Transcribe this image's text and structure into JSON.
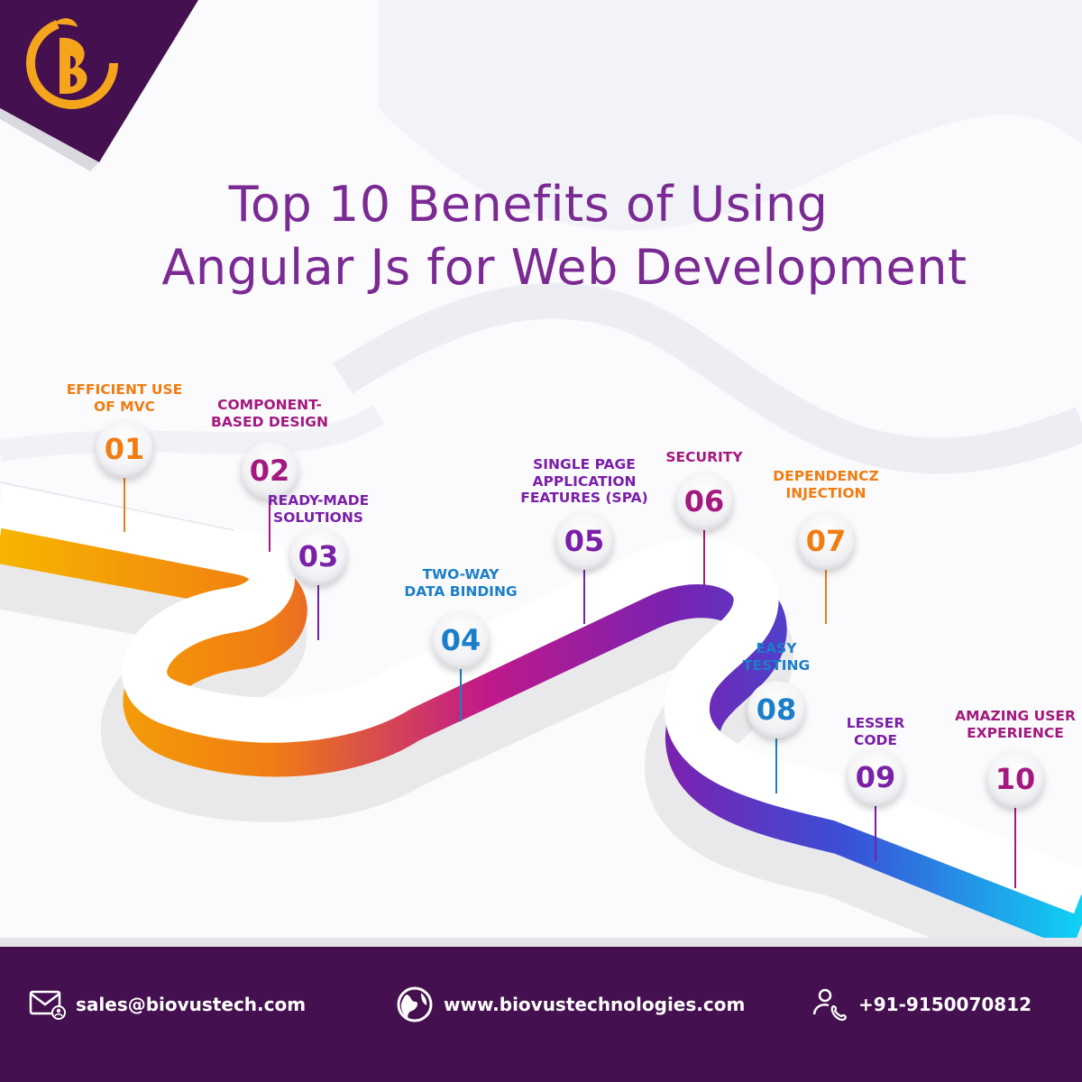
{
  "title": {
    "line1": "Top 10 Benefits of Using",
    "line2": "Angular Js for Web Development"
  },
  "colors": {
    "purple": "#7b2a93",
    "orange": "#f07d12",
    "magenta": "#a3197f",
    "violet": "#6c27b7",
    "blue": "#1a7fc8",
    "footer": "#45104f"
  },
  "benefits": [
    {
      "number": "01",
      "label": [
        "EFFICIENT USE",
        "OF MVC"
      ],
      "color": "#f07d12"
    },
    {
      "number": "02",
      "label": [
        "COMPONENT-",
        "BASED DESIGN"
      ],
      "color": "#a3197f"
    },
    {
      "number": "03",
      "label": [
        "READY-MADE",
        "SOLUTIONS"
      ],
      "color": "#7a1fa8"
    },
    {
      "number": "04",
      "label": [
        "TWO-WAY",
        "DATA BINDING"
      ],
      "color": "#1a7fc8"
    },
    {
      "number": "05",
      "label": [
        "SINGLE PAGE",
        "APPLICATION",
        "FEATURES (SPA)"
      ],
      "color": "#7a1fa8"
    },
    {
      "number": "06",
      "label": [
        "SECURITY"
      ],
      "color": "#a3197f"
    },
    {
      "number": "07",
      "label": [
        "DEPENDENCZ",
        "INJECTION"
      ],
      "color": "#f07d12"
    },
    {
      "number": "08",
      "label": [
        "EASY",
        "TESTING"
      ],
      "color": "#1a7fc8"
    },
    {
      "number": "09",
      "label": [
        "LESSER",
        "CODE"
      ],
      "color": "#7a1fa8"
    },
    {
      "number": "10",
      "label": [
        "AMAZING USER",
        "EXPERIENCE"
      ],
      "color": "#a3197f"
    }
  ],
  "footer": {
    "email": "sales@biovustech.com",
    "email_icon": "mail-icon",
    "website": "www.biovustechnologies.com",
    "website_icon": "globe-icon",
    "phone": "+91-9150070812",
    "phone_icon": "phone-user-icon"
  },
  "logo": {
    "icon": "biovus-logo-icon"
  }
}
